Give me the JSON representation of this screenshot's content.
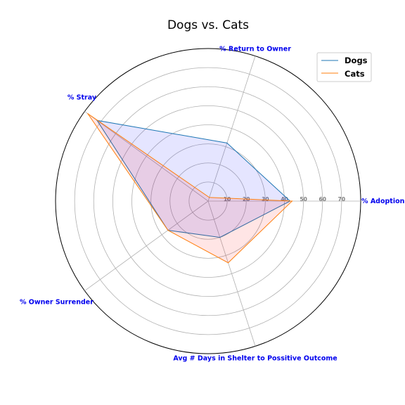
{
  "chart_data": {
    "type": "radar",
    "title": "Dogs vs. Cats",
    "categories": [
      "% Adoption",
      "% Return to Owner",
      "% Stray",
      "% Owner Surrender",
      "Avg # Days in Shelter to Possitive Outcome"
    ],
    "rlim": [
      0,
      80
    ],
    "rticks": [
      10,
      20,
      30,
      40,
      50,
      60,
      70
    ],
    "grid": true,
    "legend_position": "top-right",
    "series": [
      {
        "name": "Dogs",
        "values": [
          43,
          32,
          72,
          26,
          20
        ],
        "color": "#1f77b4",
        "fill": "#0000ff"
      },
      {
        "name": "Cats",
        "values": [
          44,
          2,
          78,
          26,
          34
        ],
        "color": "#ff7f0e",
        "fill": "#ff0000"
      }
    ]
  }
}
